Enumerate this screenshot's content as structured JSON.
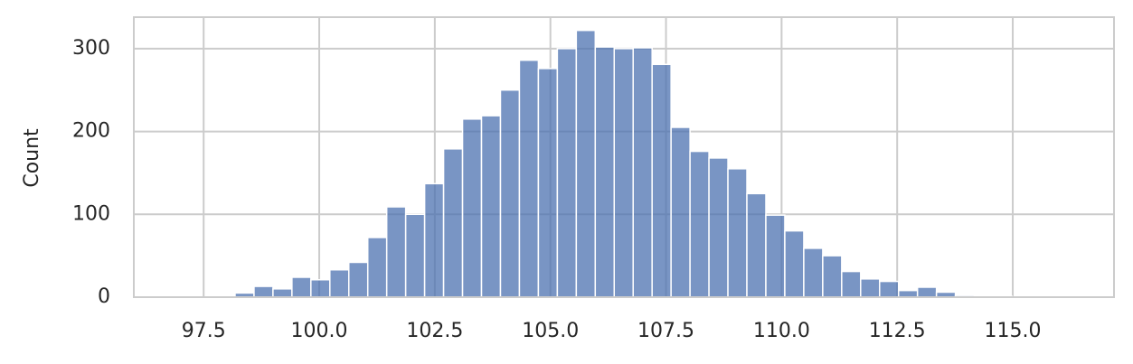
{
  "chart_data": {
    "type": "histogram",
    "ylabel": "Count",
    "color": "#4c72b0",
    "bins": [
      96.95,
      97.36,
      97.77,
      98.18,
      98.59,
      99.0,
      99.41,
      99.82,
      100.23,
      100.64,
      101.05,
      101.46,
      101.87,
      102.28,
      102.69,
      103.1,
      103.51,
      103.92,
      104.33,
      104.74,
      105.15,
      105.56,
      105.97,
      106.38,
      106.79,
      107.2,
      107.61,
      108.02,
      108.43,
      108.84,
      109.25,
      109.66,
      110.07,
      110.48,
      110.89,
      111.3,
      111.71,
      112.12,
      112.53,
      112.94,
      113.35,
      113.76,
      114.17,
      114.58,
      114.99,
      115.4,
      115.81,
      116.22
    ],
    "values": [
      1,
      0,
      1,
      5,
      13,
      10,
      24,
      21,
      33,
      42,
      72,
      109,
      100,
      137,
      179,
      215,
      219,
      250,
      286,
      276,
      300,
      322,
      302,
      300,
      301,
      281,
      205,
      176,
      168,
      155,
      125,
      99,
      80,
      59,
      50,
      31,
      22,
      19,
      8,
      12,
      6,
      2,
      1,
      1,
      0,
      0,
      1
    ],
    "xlim": [
      95.99,
      117.19
    ],
    "ylim": [
      0,
      338
    ],
    "xticks": [
      97.5,
      {
        "value": 100,
        "label": "100.0"
      },
      102.5,
      {
        "value": 105,
        "label": "105.0"
      },
      107.5,
      {
        "value": 110,
        "label": "110.0"
      },
      112.5,
      {
        "value": 115,
        "label": "115.0"
      }
    ],
    "yticks": [
      0,
      100,
      200,
      300
    ],
    "grid": true
  }
}
